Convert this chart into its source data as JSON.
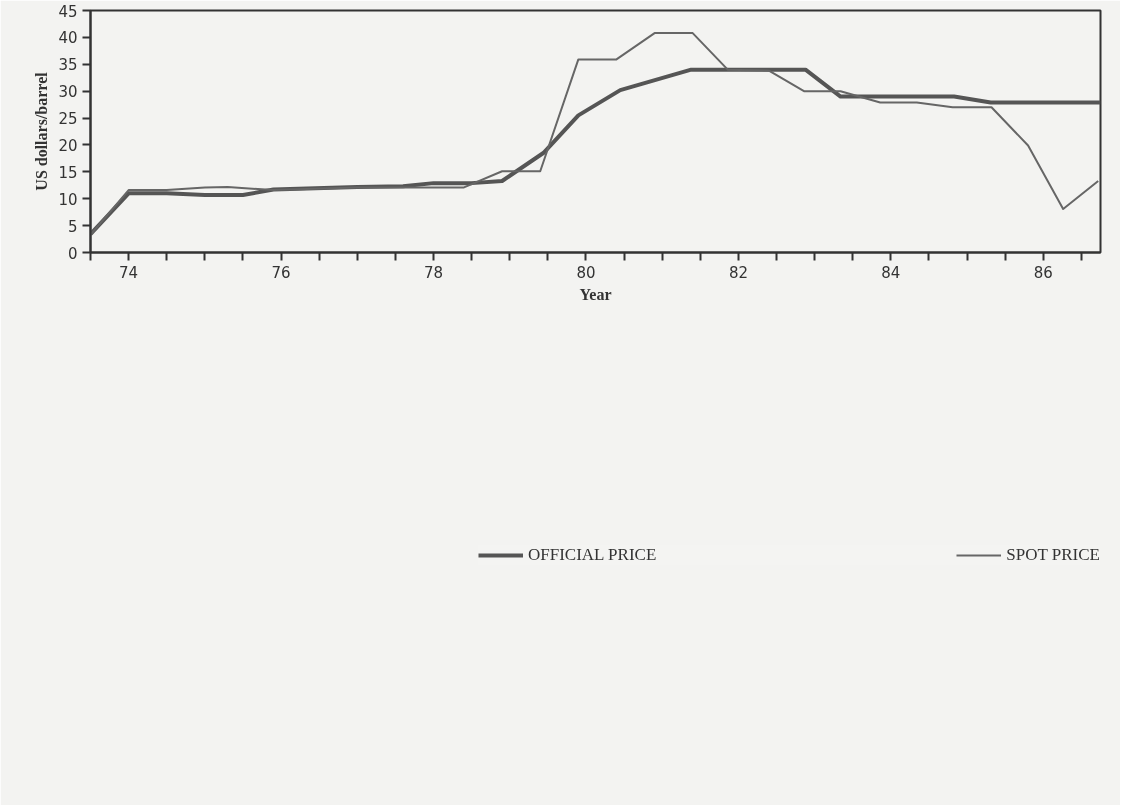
{
  "chart_data": {
    "type": "line",
    "xlabel": "Year",
    "ylabel": "US dollars/barrel",
    "xlim": [
      73.5,
      86.75
    ],
    "ylim": [
      0,
      45
    ],
    "xticks": [
      {
        "value": 73.5,
        "label": null
      },
      74,
      {
        "value": 74.5,
        "label": null
      },
      {
        "value": 75,
        "label": null
      },
      {
        "value": 75.5,
        "label": null
      },
      76,
      {
        "value": 76.5,
        "label": null
      },
      {
        "value": 77,
        "label": null
      },
      {
        "value": 77.5,
        "label": null
      },
      78,
      {
        "value": 78.5,
        "label": null
      },
      {
        "value": 79,
        "label": null
      },
      {
        "value": 79.5,
        "label": null
      },
      80,
      {
        "value": 80.5,
        "label": null
      },
      {
        "value": 81,
        "label": null
      },
      {
        "value": 81.5,
        "label": null
      },
      82,
      {
        "value": 82.5,
        "label": null
      },
      {
        "value": 83,
        "label": null
      },
      {
        "value": 83.5,
        "label": null
      },
      84,
      {
        "value": 84.5,
        "label": null
      },
      {
        "value": 85,
        "label": null
      },
      {
        "value": 85.5,
        "label": null
      },
      86,
      {
        "value": 86.5,
        "label": null
      }
    ],
    "yticks": [
      0,
      5,
      10,
      15,
      20,
      25,
      30,
      35,
      40,
      45
    ],
    "grid": false,
    "legend": "bottom",
    "marker": "none",
    "line_style": "solid",
    "series": [
      {
        "name": "OFFICIAL PRICE",
        "color": "#555555",
        "x": [
          73.5,
          74.0,
          74.5,
          75.0,
          75.5,
          75.9,
          77.0,
          77.6,
          78.0,
          78.5,
          78.9,
          79.45,
          79.9,
          80.45,
          81.38,
          82.88,
          83.34,
          84.83,
          85.31,
          86.75
        ],
        "values": [
          3.4,
          11.0,
          11.0,
          10.7,
          10.7,
          11.7,
          12.2,
          12.3,
          12.9,
          12.9,
          13.3,
          18.6,
          25.5,
          30.2,
          34.0,
          34.0,
          29.0,
          29.0,
          27.9,
          27.9
        ]
      },
      {
        "name": "SPOT PRICE",
        "color": "#666666",
        "x": [
          73.5,
          74.0,
          74.5,
          75.0,
          75.3,
          75.9,
          77.0,
          77.6,
          78.4,
          78.9,
          79.4,
          79.9,
          80.4,
          80.9,
          81.4,
          81.86,
          82.4,
          82.86,
          83.34,
          83.86,
          84.34,
          84.81,
          85.32,
          85.8,
          86.26,
          86.72
        ],
        "values": [
          3.3,
          11.6,
          11.6,
          12.1,
          12.2,
          11.6,
          12.1,
          12.1,
          12.1,
          15.1,
          15.1,
          35.9,
          35.9,
          40.8,
          40.8,
          34.0,
          33.8,
          30.0,
          30.0,
          27.9,
          27.9,
          27.0,
          27.0,
          19.9,
          8.1,
          13.3
        ]
      }
    ]
  }
}
